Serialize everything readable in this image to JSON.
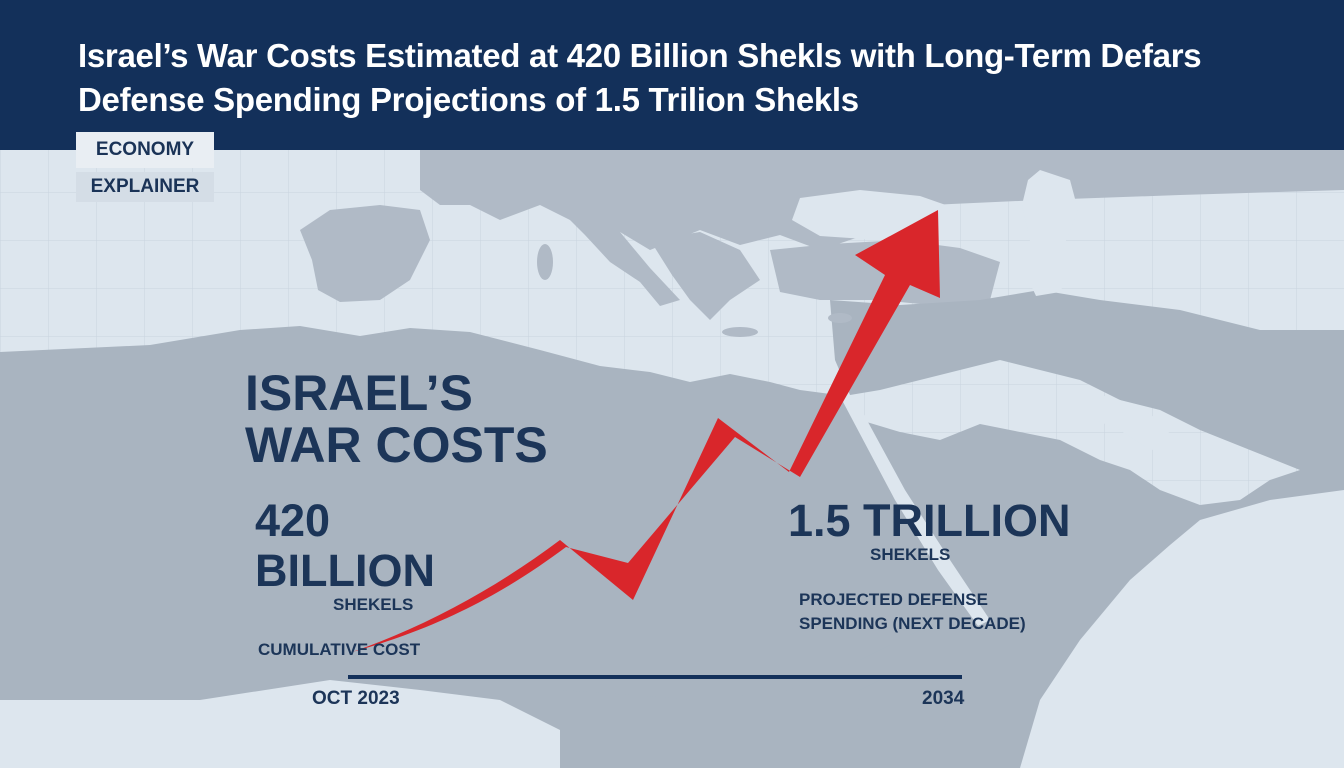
{
  "header": {
    "headline": "Israel’s War Costs Estimated at 420 Billion Shekls with Long-Term Defars Defense Spending Projections of 1.5 Trilion Shekls"
  },
  "tags": {
    "category": "ECONOMY",
    "format": "EXPLAINER"
  },
  "main": {
    "title_line1": "ISRAEL’S",
    "title_line2": "WAR COSTS"
  },
  "stats": {
    "current": {
      "value": "420 BILLION",
      "unit": "SHEKELS",
      "description": "CUMULATIVE COST"
    },
    "projected": {
      "value": "1.5 TRILLION",
      "unit": "SHEKELS",
      "description_line1": "PROJECTED DEFENSE",
      "description_line2": "SPENDING (NEXT DECADE)"
    }
  },
  "timeline": {
    "start_label": "OCT 2023",
    "end_label": "2034"
  },
  "colors": {
    "header_bg": "#13305a",
    "accent_red": "#d9262b",
    "text_navy": "#1c3558",
    "sea": "#dde6ee",
    "land": "#a9b4c0"
  }
}
